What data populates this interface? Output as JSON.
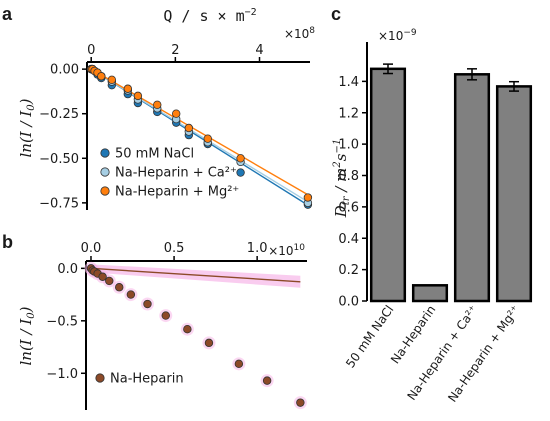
{
  "chart_data": [
    {
      "panel": "a",
      "type": "scatter",
      "xlabel": "Q / s × m^-2",
      "ylabel": "ln(I / I0)",
      "x_multiplier": "×10^8",
      "xlim": [
        -0.1,
        5.2
      ],
      "ylim": [
        -0.79,
        0.04
      ],
      "xticks": [
        0,
        2,
        4
      ],
      "yticks": [
        0.0,
        -0.25,
        -0.5,
        -0.75
      ],
      "xtick_labels": [
        "0",
        "2",
        "4"
      ],
      "ytick_labels": [
        "0.00",
        "−0.25",
        "−0.50",
        "−0.75"
      ],
      "legend_position": "lower-left",
      "series": [
        {
          "name": "50 mM NaCl",
          "color": "#1f77b4",
          "slope": -0.1481,
          "x": [
            0,
            0.03,
            0.08,
            0.15,
            0.24,
            0.49,
            0.87,
            1.11,
            1.57,
            2.02,
            2.32,
            2.77,
            3.55,
            5.15
          ],
          "y": [
            0.0,
            0.0,
            -0.01,
            -0.03,
            -0.05,
            -0.09,
            -0.14,
            -0.19,
            -0.24,
            -0.3,
            -0.37,
            -0.42,
            -0.58,
            -0.76
          ]
        },
        {
          "name": "Na-Heparin + Ca²⁺",
          "color": "#a6cee3",
          "slope": -0.1445,
          "x": [
            0,
            0.03,
            0.08,
            0.15,
            0.24,
            0.49,
            0.87,
            1.11,
            1.57,
            2.02,
            2.32,
            2.77,
            3.55,
            5.15
          ],
          "y": [
            0.0,
            0.0,
            -0.01,
            -0.02,
            -0.04,
            -0.07,
            -0.12,
            -0.17,
            -0.22,
            -0.28,
            -0.35,
            -0.41,
            -0.52,
            -0.75
          ]
        },
        {
          "name": "Na-Heparin + Mg²⁺",
          "color": "#ff7f0e",
          "slope": -0.1368,
          "x": [
            0,
            0.03,
            0.08,
            0.15,
            0.24,
            0.49,
            0.87,
            1.11,
            1.57,
            2.02,
            2.32,
            2.77,
            3.55,
            5.15
          ],
          "y": [
            0.0,
            0.0,
            -0.01,
            -0.02,
            -0.04,
            -0.06,
            -0.11,
            -0.15,
            -0.2,
            -0.25,
            -0.33,
            -0.39,
            -0.5,
            -0.72
          ]
        }
      ]
    },
    {
      "panel": "b",
      "type": "scatter",
      "ylabel": "ln(I / I0)",
      "x_multiplier": "×10^10",
      "xlim": [
        -0.03,
        1.3
      ],
      "ylim": [
        -1.35,
        0.07
      ],
      "xticks": [
        0.0,
        0.5,
        1.0
      ],
      "yticks": [
        0.0,
        -0.5,
        -1.0
      ],
      "xtick_labels": [
        "0.0",
        "0.5",
        "1.0"
      ],
      "ytick_labels": [
        "0.0",
        "−0.5",
        "−1.0"
      ],
      "legend_position": "lower-left",
      "series": [
        {
          "name": "Na-Heparin",
          "color": "#8c4a28",
          "band_color": "#f7b6e8",
          "slope": -0.1015,
          "x": [
            0,
            0.01,
            0.02,
            0.04,
            0.07,
            0.11,
            0.17,
            0.24,
            0.34,
            0.45,
            0.58,
            0.71,
            0.89,
            1.06,
            1.26
          ],
          "y": [
            0.0,
            -0.02,
            -0.03,
            -0.05,
            -0.08,
            -0.12,
            -0.18,
            -0.25,
            -0.34,
            -0.45,
            -0.58,
            -0.71,
            -0.91,
            -1.07,
            -1.28
          ]
        }
      ]
    },
    {
      "panel": "c",
      "type": "bar",
      "ylabel": "D_tr / m²s⁻¹",
      "y_multiplier": "×10^-9",
      "ylim": [
        0,
        1.6
      ],
      "yticks": [
        0.0,
        0.2,
        0.4,
        0.6,
        0.8,
        1.0,
        1.2,
        1.4
      ],
      "ytick_labels": [
        "0.0",
        "0.2",
        "0.4",
        "0.6",
        "0.8",
        "1.0",
        "1.2",
        "1.4"
      ],
      "categories": [
        "50 mM NaCl",
        "Na-Heparin",
        "Na-Heparin + Ca²⁺",
        "Na-Heparin + Mg²⁺"
      ],
      "values": [
        1.48,
        0.1,
        1.445,
        1.368
      ],
      "errors": [
        0.03,
        0.0,
        0.035,
        0.03
      ],
      "bar_color": "#808080"
    }
  ]
}
